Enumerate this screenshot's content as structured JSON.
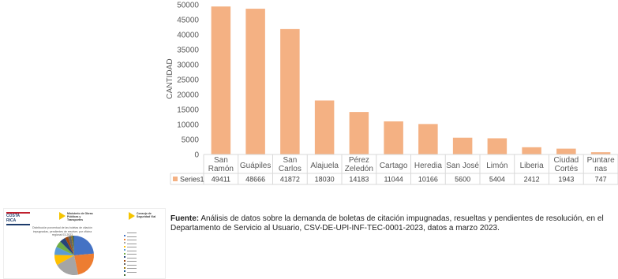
{
  "chart_data": {
    "type": "bar",
    "title": "",
    "xlabel": "",
    "ylabel": "CANTIDAD",
    "ylim": [
      0,
      50000
    ],
    "yticks": [
      0,
      5000,
      10000,
      15000,
      20000,
      25000,
      30000,
      35000,
      40000,
      45000,
      50000
    ],
    "grid": false,
    "categories": [
      [
        "San",
        "Ramón"
      ],
      [
        "Guápiles"
      ],
      [
        "San",
        "Carlos"
      ],
      [
        "Alajuela"
      ],
      [
        "Pérez",
        "Zeledón"
      ],
      [
        "Cartago"
      ],
      [
        "Heredia"
      ],
      [
        "San José"
      ],
      [
        "Limón"
      ],
      [
        "Liberia"
      ],
      [
        "Ciudad",
        "Cortés"
      ],
      [
        "Puntare",
        "nas"
      ]
    ],
    "series": [
      {
        "name": "Series1",
        "color": "#f4b183",
        "values": [
          49411,
          48666,
          41872,
          18030,
          14183,
          11044,
          10166,
          5600,
          5404,
          2412,
          1943,
          747
        ]
      }
    ]
  },
  "source_note": {
    "label": "Fuente:",
    "text": " Análisis de datos sobre la demanda de boletas de citación impugnadas, resueltas y pendientes de resolución, en el Departamento de Servicio al Usuario, CSV-DE-UPI-INF-TEC-0001-2023, datos a marzo 2023."
  },
  "thumbnail": {
    "logo_text": "COSTA RICA",
    "org_middle": "Ministerio de Obras Públicas y Transportes",
    "org_right": "Consejo de Seguridad Vial",
    "title": "Distribución porcentual de las boletas de citación impugnadas, pendientes de resolver, por oficina regional 03-2023",
    "pie_colors": [
      "#4472c4",
      "#ed7d31",
      "#a5a5a5",
      "#ffc000",
      "#5b9bd5",
      "#70ad47",
      "#264478",
      "#9e480e",
      "#636363",
      "#997300",
      "#255e91",
      "#43682b"
    ],
    "pie_values": [
      49411,
      48666,
      41872,
      18030,
      14183,
      11044,
      10166,
      5600,
      5404,
      2412,
      1943,
      747
    ]
  }
}
